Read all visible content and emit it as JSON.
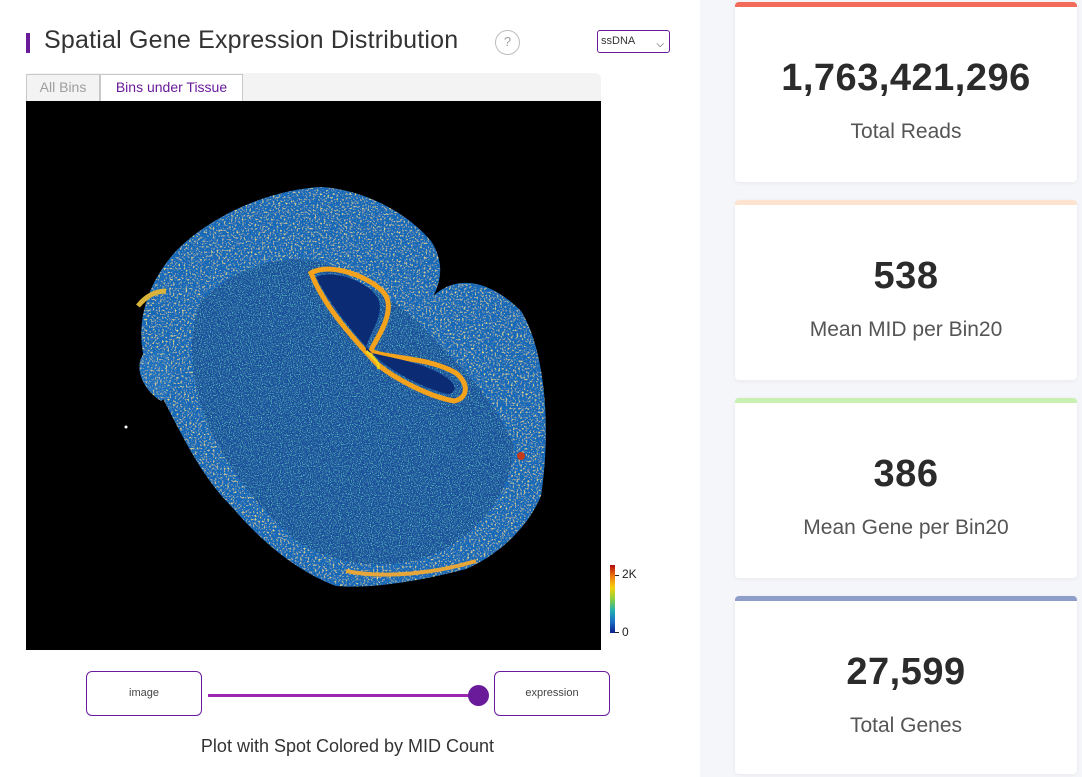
{
  "header": {
    "title": "Spatial Gene Expression Distribution",
    "help_icon": "?",
    "select_value": "ssDNA"
  },
  "tabs": [
    {
      "label": "All Bins",
      "active": false
    },
    {
      "label": "Bins under Tissue",
      "active": true
    }
  ],
  "colorbar": {
    "max_label": "2K",
    "min_label": "0"
  },
  "view_toggle": {
    "left_label": "image",
    "right_label": "expression",
    "position": 1
  },
  "caption": "Plot with Spot Colored by MID Count",
  "stats": [
    {
      "value": "1,763,421,296",
      "label": "Total Reads",
      "color": "#f26b5b"
    },
    {
      "value": "538",
      "label": "Mean MID per Bin20",
      "color": "#fde3d0"
    },
    {
      "value": "386",
      "label": "Mean Gene per Bin20",
      "color": "#c8f0b0"
    },
    {
      "value": "27,599",
      "label": "Total Genes",
      "color": "#8e9dc9"
    }
  ],
  "colors": {
    "accent": "#6a1b9a",
    "slider": "#9c27b0"
  }
}
